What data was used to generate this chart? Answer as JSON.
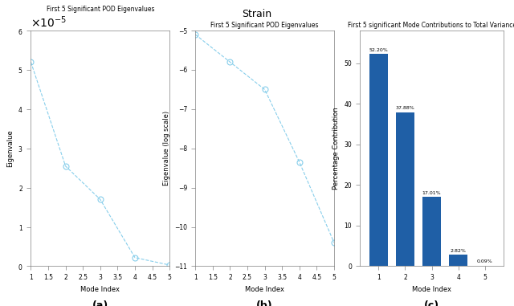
{
  "fig_title": "Strain",
  "panel_a": {
    "title": "First 5 Significant POD Eigenvalues",
    "xlabel": "Mode Index",
    "ylabel": "Eigenvalue",
    "x": [
      1,
      2,
      3,
      4,
      5
    ],
    "y": [
      5.2e-05,
      2.55e-05,
      1.7e-05,
      2.2e-06,
      3e-07
    ],
    "xlim": [
      1,
      5
    ],
    "ylim": [
      0,
      6e-05
    ],
    "color": "#87CEEB",
    "label": "(a)"
  },
  "panel_b": {
    "title": "First 5 Significant POD Eigenvalues",
    "xlabel": "Mode Index",
    "ylabel": "Eigenvalue (log scale)",
    "x": [
      1,
      2,
      3,
      4,
      5
    ],
    "y_log": [
      -5.1,
      -5.8,
      -6.5,
      -8.35,
      -10.4
    ],
    "xlim": [
      1,
      5
    ],
    "ylim": [
      -11,
      -5
    ],
    "yticks": [
      -5,
      -6,
      -7,
      -8,
      -9,
      -10,
      -11
    ],
    "color": "#87CEEB",
    "label": "(b)"
  },
  "panel_c": {
    "title": "First 5 significant Mode Contributions to Total Variance",
    "xlabel": "Mode Index",
    "ylabel": "Percentage Contribution",
    "x": [
      1,
      2,
      3,
      4,
      5
    ],
    "y": [
      52.2,
      37.88,
      17.01,
      2.82,
      0.09
    ],
    "labels": [
      "52.20%",
      "37.88%",
      "17.01%",
      "2.82%",
      "0.09%"
    ],
    "ylim": [
      0,
      58
    ],
    "bar_color": "#1F5FA6",
    "label": "(c)"
  },
  "line_color": "#87CEEB",
  "marker_color": "#87CEEB",
  "bg_color": "#ffffff"
}
